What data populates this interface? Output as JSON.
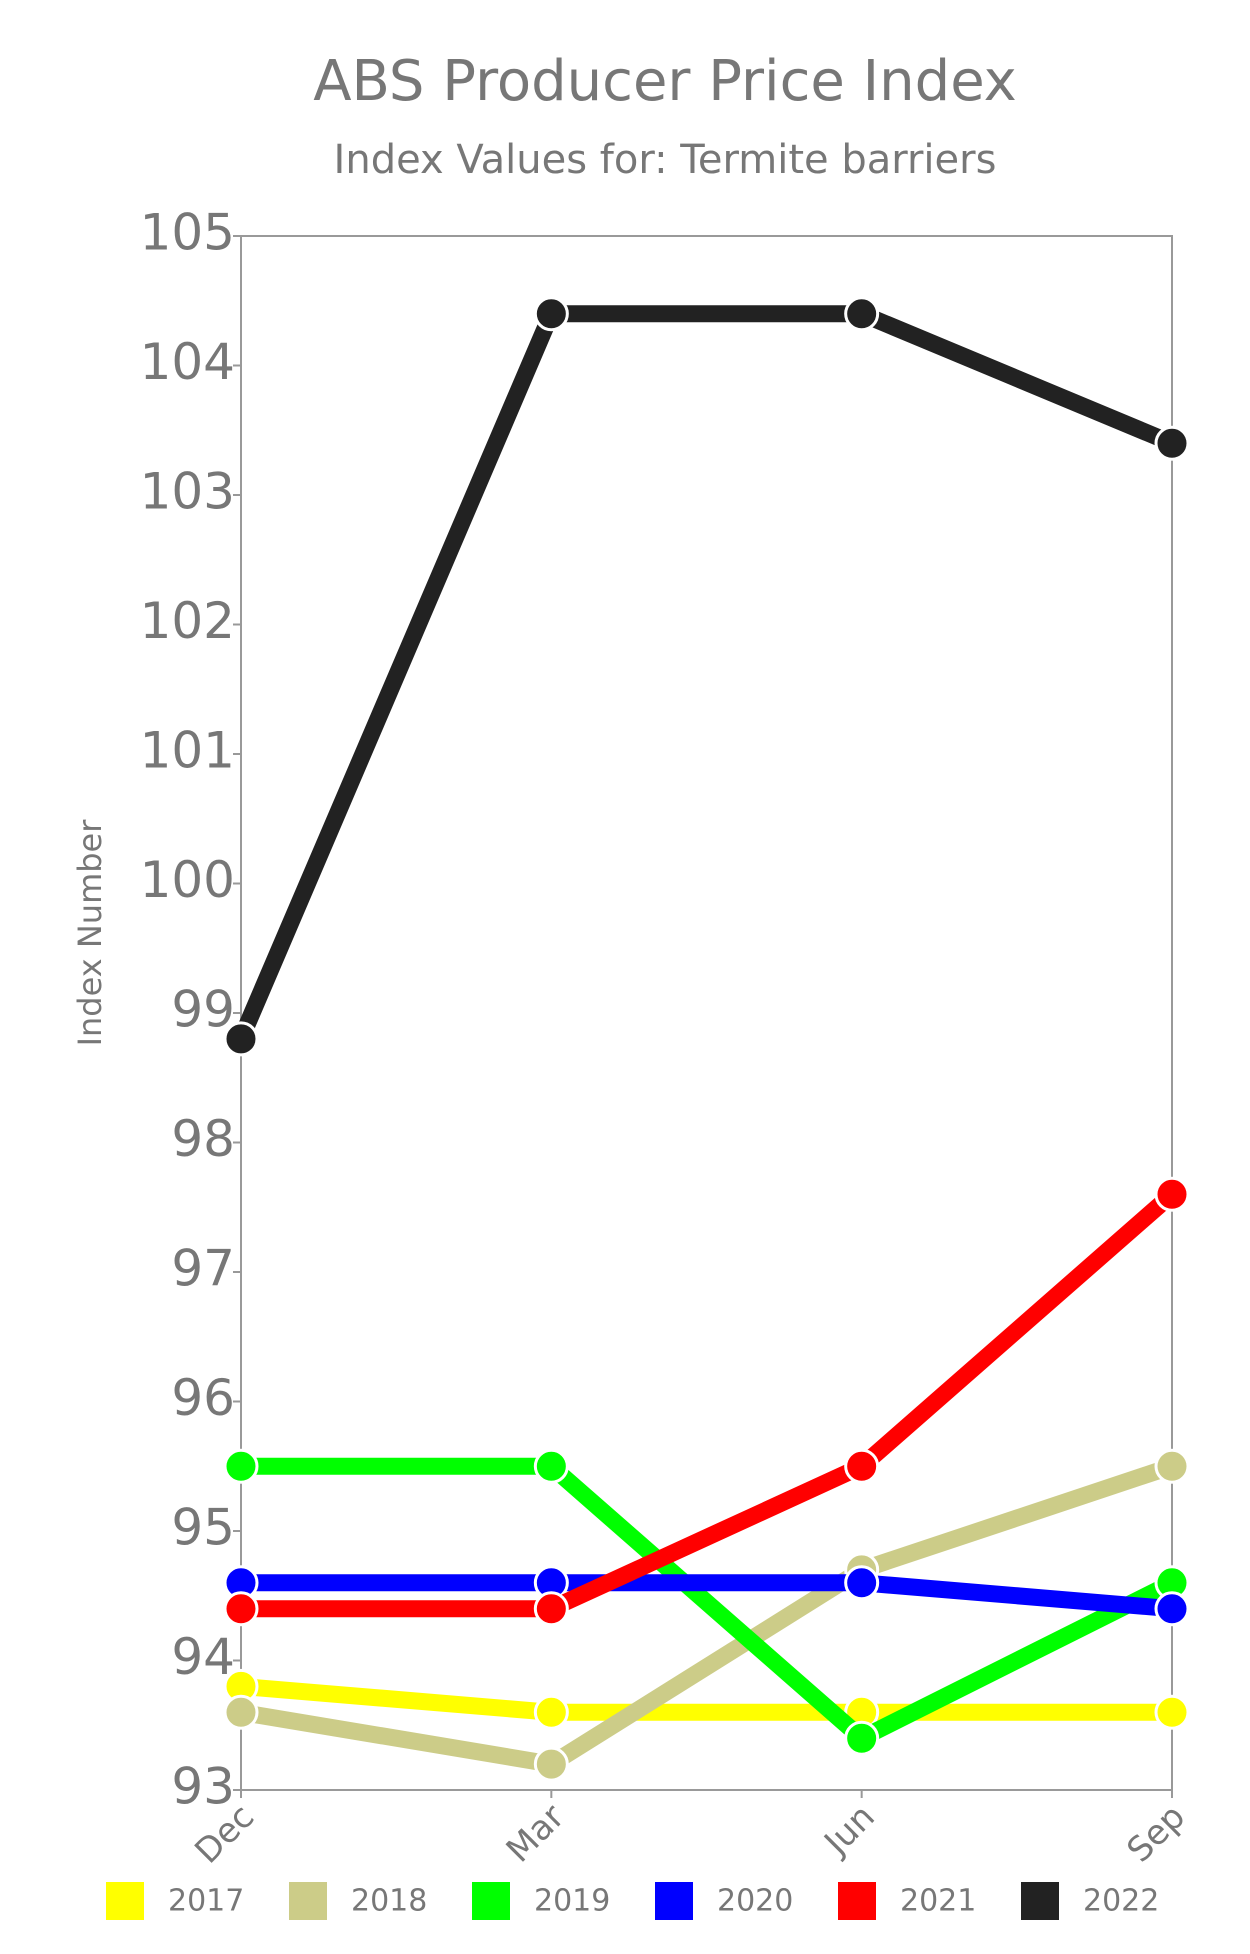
{
  "chart_data": {
    "type": "line",
    "title": "ABS Producer Price Index",
    "subtitle": "Index Values for: Termite barriers",
    "y_label": "Index Number",
    "categories": [
      "Dec",
      "Mar",
      "Jun",
      "Sep"
    ],
    "ylim": [
      93,
      105
    ],
    "yticks": [
      93,
      94,
      95,
      96,
      97,
      98,
      99,
      100,
      101,
      102,
      103,
      104,
      105
    ],
    "series": [
      {
        "name": "2017",
        "color": "#ffff00",
        "values": [
          93.8,
          93.6,
          93.6,
          93.6
        ]
      },
      {
        "name": "2018",
        "color": "#cccc88",
        "values": [
          93.6,
          93.2,
          94.7,
          95.5
        ]
      },
      {
        "name": "2019",
        "color": "#00ff00",
        "values": [
          95.5,
          95.5,
          93.4,
          94.6
        ]
      },
      {
        "name": "2020",
        "color": "#0000ff",
        "values": [
          94.6,
          94.6,
          94.6,
          94.4
        ]
      },
      {
        "name": "2021",
        "color": "#ff0000",
        "values": [
          94.4,
          94.4,
          95.5,
          97.6
        ]
      },
      {
        "name": "2022",
        "color": "#222222",
        "values": [
          98.8,
          104.4,
          104.4,
          103.4
        ]
      }
    ]
  }
}
